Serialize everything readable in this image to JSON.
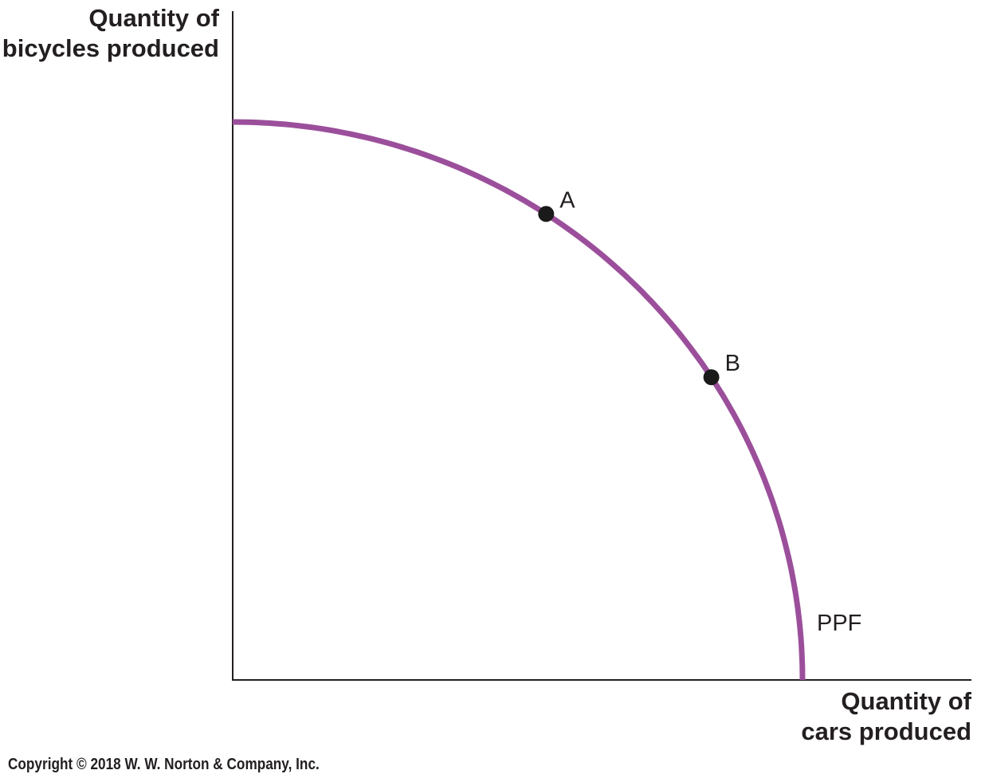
{
  "chart_data": {
    "type": "line",
    "title": "",
    "xlabel_lines": [
      "Quantity of",
      "cars produced"
    ],
    "ylabel_lines": [
      "Quantity of",
      "bicycles produced"
    ],
    "xlim": [
      0,
      100
    ],
    "ylim": [
      0,
      100
    ],
    "grid": false,
    "series": [
      {
        "name": "PPF",
        "color": "#9b4f9b",
        "x": [
          0,
          10,
          20,
          30,
          40,
          50,
          55,
          60,
          65,
          70,
          75,
          80,
          85,
          90,
          95,
          98,
          100
        ],
        "y": [
          100,
          98.9,
          95.8,
          90.8,
          84.5,
          77.3,
          73.1,
          68.2,
          62.8,
          56.7,
          49.7,
          41.7,
          32.8,
          22.8,
          11.9,
          5.0,
          0
        ]
      }
    ],
    "points": [
      {
        "label": "A",
        "x": 55,
        "y": 83
      },
      {
        "label": "B",
        "x": 84,
        "y": 53.5
      }
    ],
    "point_color": "#1a1a1a"
  },
  "copyright": "Copyright © 2018 W. W. Norton & Company, Inc."
}
